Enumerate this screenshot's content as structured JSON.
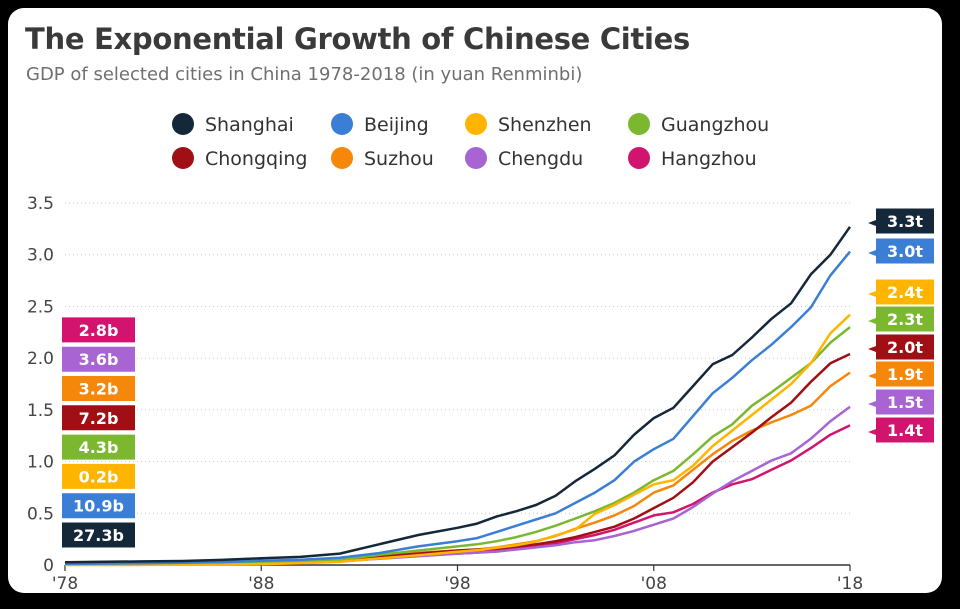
{
  "title": "The Exponential Growth of Chinese Cities",
  "subtitle": "GDP of selected cities in China 1978-2018 (in yuan Renminbi)",
  "chart_data": {
    "type": "line",
    "title": "The Exponential Growth of Chinese Cities",
    "subtitle": "GDP of selected cities in China 1978-2018 (in yuan Renminbi)",
    "xlabel": "",
    "ylabel": "",
    "xlim": [
      1978,
      2018
    ],
    "ylim": [
      0,
      3.5
    ],
    "y_ticks": [
      0,
      0.5,
      1.0,
      1.5,
      2.0,
      2.5,
      3.0,
      3.5
    ],
    "y_tick_labels": [
      "0",
      "0.5",
      "1.0",
      "1.5",
      "2.0",
      "2.5",
      "3.0",
      "3.5"
    ],
    "x_ticks": [
      1978,
      1988,
      1998,
      2008,
      2018
    ],
    "x_tick_labels": [
      "'78",
      "'88",
      "'98",
      "'08",
      "'18"
    ],
    "grid": "horizontal dotted",
    "legend_position": "top",
    "x": [
      1978,
      1980,
      1982,
      1984,
      1986,
      1988,
      1990,
      1992,
      1994,
      1996,
      1998,
      1999,
      2000,
      2001,
      2002,
      2003,
      2004,
      2005,
      2006,
      2007,
      2008,
      2009,
      2010,
      2011,
      2012,
      2013,
      2014,
      2015,
      2016,
      2017,
      2018
    ],
    "series": [
      {
        "name": "Shanghai",
        "color": "#14283a",
        "start_label": "27.3b",
        "end_label": "3.3t",
        "values": [
          0.027,
          0.031,
          0.035,
          0.039,
          0.049,
          0.065,
          0.078,
          0.11,
          0.2,
          0.29,
          0.36,
          0.4,
          0.47,
          0.52,
          0.58,
          0.67,
          0.81,
          0.93,
          1.06,
          1.26,
          1.42,
          1.52,
          1.73,
          1.94,
          2.03,
          2.2,
          2.38,
          2.53,
          2.81,
          3.0,
          3.27
        ]
      },
      {
        "name": "Beijing",
        "color": "#3a7fd5",
        "start_label": "10.9b",
        "end_label": "3.0t",
        "values": [
          0.011,
          0.014,
          0.017,
          0.022,
          0.028,
          0.041,
          0.05,
          0.071,
          0.115,
          0.18,
          0.23,
          0.26,
          0.32,
          0.38,
          0.44,
          0.5,
          0.6,
          0.7,
          0.82,
          1.0,
          1.12,
          1.22,
          1.44,
          1.66,
          1.81,
          1.98,
          2.13,
          2.3,
          2.49,
          2.8,
          3.03
        ]
      },
      {
        "name": "Shenzhen",
        "color": "#ffb400",
        "start_label": "0.2b",
        "end_label": "2.4t",
        "values": [
          0.0002,
          0.0003,
          0.0008,
          0.0023,
          0.0042,
          0.0087,
          0.0172,
          0.0317,
          0.0635,
          0.095,
          0.129,
          0.144,
          0.167,
          0.19,
          0.226,
          0.286,
          0.342,
          0.495,
          0.58,
          0.68,
          0.78,
          0.82,
          0.96,
          1.15,
          1.3,
          1.45,
          1.6,
          1.75,
          1.95,
          2.24,
          2.42
        ]
      },
      {
        "name": "Guangzhou",
        "color": "#7cb82f",
        "start_label": "4.3b",
        "end_label": "2.3t",
        "values": [
          0.0043,
          0.0057,
          0.0074,
          0.0103,
          0.014,
          0.024,
          0.032,
          0.05,
          0.098,
          0.14,
          0.18,
          0.2,
          0.23,
          0.27,
          0.32,
          0.38,
          0.45,
          0.52,
          0.6,
          0.7,
          0.82,
          0.91,
          1.07,
          1.24,
          1.36,
          1.54,
          1.67,
          1.81,
          1.95,
          2.15,
          2.3
        ]
      },
      {
        "name": "Chongqing",
        "color": "#a00f14",
        "start_label": "7.2b",
        "end_label": "2.0t",
        "values": [
          0.0072,
          0.009,
          0.011,
          0.015,
          0.02,
          0.028,
          0.035,
          0.05,
          0.08,
          0.11,
          0.14,
          0.15,
          0.16,
          0.18,
          0.2,
          0.23,
          0.27,
          0.32,
          0.37,
          0.45,
          0.55,
          0.65,
          0.8,
          1.0,
          1.14,
          1.28,
          1.43,
          1.57,
          1.77,
          1.95,
          2.04
        ]
      },
      {
        "name": "Suzhou",
        "color": "#f5870a",
        "start_label": "3.2b",
        "end_label": "1.9t",
        "values": [
          0.0032,
          0.0045,
          0.006,
          0.008,
          0.012,
          0.02,
          0.028,
          0.045,
          0.086,
          0.12,
          0.14,
          0.15,
          0.17,
          0.2,
          0.23,
          0.28,
          0.35,
          0.41,
          0.48,
          0.57,
          0.7,
          0.77,
          0.92,
          1.07,
          1.2,
          1.3,
          1.38,
          1.45,
          1.54,
          1.73,
          1.86
        ]
      },
      {
        "name": "Chengdu",
        "color": "#a764d2",
        "start_label": "3.6b",
        "end_label": "1.5t",
        "values": [
          0.0036,
          0.005,
          0.006,
          0.008,
          0.01,
          0.018,
          0.024,
          0.035,
          0.06,
          0.085,
          0.11,
          0.12,
          0.13,
          0.15,
          0.17,
          0.19,
          0.22,
          0.24,
          0.28,
          0.33,
          0.39,
          0.45,
          0.56,
          0.69,
          0.81,
          0.91,
          1.01,
          1.08,
          1.22,
          1.39,
          1.53
        ]
      },
      {
        "name": "Hangzhou",
        "color": "#d2146e",
        "start_label": "2.8b",
        "end_label": "1.4t",
        "values": [
          0.0028,
          0.004,
          0.005,
          0.007,
          0.01,
          0.017,
          0.023,
          0.034,
          0.065,
          0.09,
          0.11,
          0.12,
          0.14,
          0.16,
          0.18,
          0.21,
          0.25,
          0.29,
          0.34,
          0.41,
          0.48,
          0.51,
          0.59,
          0.7,
          0.78,
          0.83,
          0.92,
          1.01,
          1.13,
          1.26,
          1.35
        ]
      }
    ]
  }
}
